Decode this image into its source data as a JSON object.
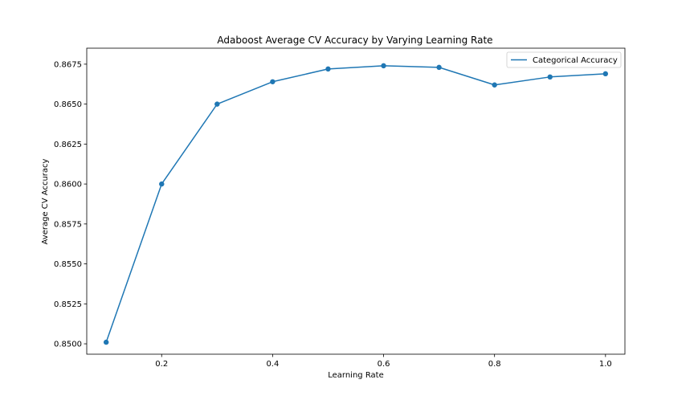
{
  "chart_data": {
    "type": "line",
    "title": "Adaboost Average CV Accuracy by Varying Learning Rate",
    "xlabel": "Learning Rate",
    "ylabel": "Average CV Accuracy",
    "xlim": [
      0.065,
      1.035
    ],
    "ylim": [
      0.84935,
      0.8685
    ],
    "x_ticks": [
      0.2,
      0.4,
      0.6,
      0.8,
      1.0
    ],
    "x_tick_labels": [
      "0.2",
      "0.4",
      "0.6",
      "0.8",
      "1.0"
    ],
    "y_ticks": [
      0.85,
      0.8525,
      0.855,
      0.8575,
      0.86,
      0.8625,
      0.865,
      0.8675
    ],
    "y_tick_labels": [
      "0.8500",
      "0.8525",
      "0.8550",
      "0.8575",
      "0.8600",
      "0.8625",
      "0.8650",
      "0.8675"
    ],
    "grid": false,
    "legend_position": "top-right",
    "series": [
      {
        "name": "Categorical Accuracy",
        "color": "#1f77b4",
        "x": [
          0.1,
          0.2,
          0.3,
          0.4,
          0.5,
          0.6,
          0.7,
          0.8,
          0.9,
          1.0
        ],
        "y": [
          0.8501,
          0.86,
          0.865,
          0.8664,
          0.8672,
          0.8674,
          0.8673,
          0.8662,
          0.8667,
          0.8669
        ]
      }
    ]
  }
}
